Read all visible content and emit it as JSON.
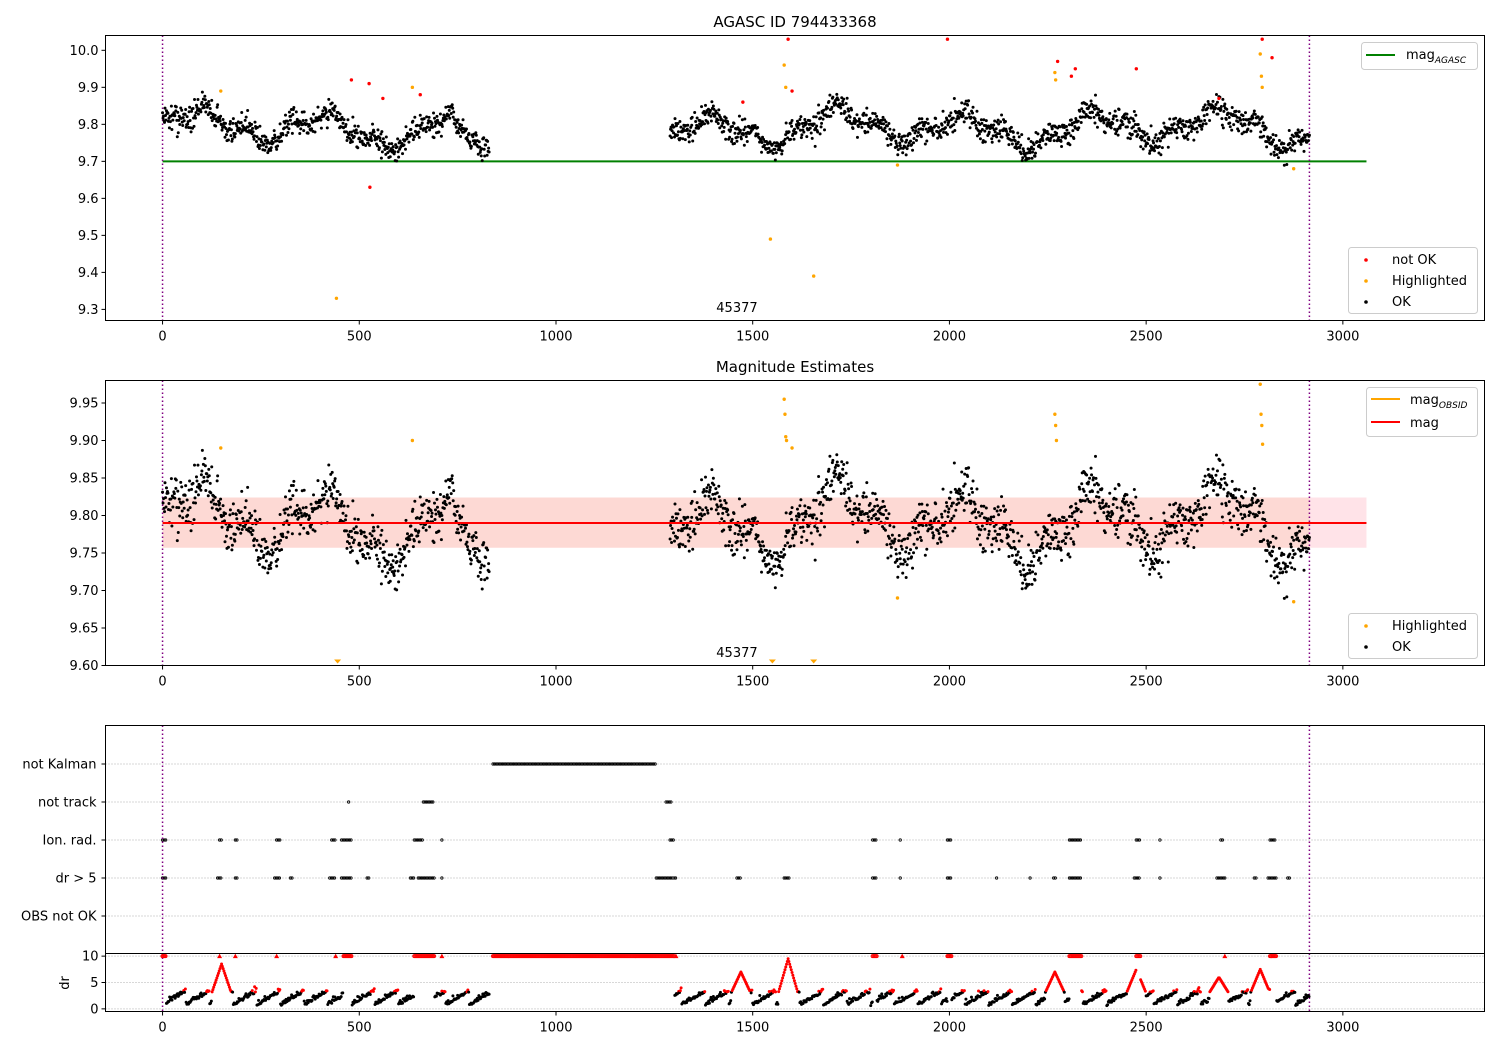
{
  "colors": {
    "ok": "#000000",
    "highlighted": "#ffa500",
    "not_ok": "#ff0000",
    "agasc_line": "#008000",
    "obsid_line": "#ffa500",
    "mag_line": "#ff0000",
    "band_fill": "#fa8072",
    "band_fill_ext": "#ffc0cb",
    "vline": "#800080",
    "grid": "#b0b0b0"
  },
  "chart_data": [
    {
      "type": "scatter",
      "title": "AGASC ID 794433368",
      "xlim": [
        -145,
        3360
      ],
      "ylim": [
        9.27,
        10.04
      ],
      "xticks": [
        0,
        500,
        1000,
        1500,
        2000,
        2500,
        3000
      ],
      "xtick_labels": [
        "0",
        "500",
        "1000",
        "1500",
        "2000",
        "2500",
        "3000"
      ],
      "yticks": [
        9.3,
        9.4,
        9.5,
        9.6,
        9.7,
        9.8,
        9.9,
        10.0
      ],
      "ytick_labels": [
        "9.3",
        "9.4",
        "9.5",
        "9.6",
        "9.7",
        "9.8",
        "9.9",
        "10.0"
      ],
      "obsid_label": "45377",
      "obsid_label_x": 1460,
      "vlines": [
        0,
        2915
      ],
      "hline": {
        "y": 9.7,
        "x": [
          0,
          3060
        ]
      },
      "segments": [
        [
          0,
          830
        ],
        [
          1290,
          2915
        ]
      ],
      "highlighted_points": [
        [
          148,
          9.89
        ],
        [
          442,
          9.33
        ],
        [
          635,
          9.9
        ],
        [
          1545,
          9.49
        ],
        [
          1580,
          9.96
        ],
        [
          1584,
          9.9
        ],
        [
          1655,
          9.39
        ],
        [
          1868,
          9.69
        ],
        [
          2268,
          9.94
        ],
        [
          2270,
          9.92
        ],
        [
          2790,
          9.99
        ],
        [
          2793,
          9.93
        ],
        [
          2795,
          9.9
        ],
        [
          2875,
          9.68
        ]
      ],
      "not_ok_points": [
        [
          480,
          9.92
        ],
        [
          525,
          9.91
        ],
        [
          527,
          9.63
        ],
        [
          560,
          9.87
        ],
        [
          655,
          9.88
        ],
        [
          1475,
          9.86
        ],
        [
          1590,
          10.03
        ],
        [
          1600,
          9.89
        ],
        [
          1995,
          10.03
        ],
        [
          2275,
          9.97
        ],
        [
          2310,
          9.93
        ],
        [
          2320,
          9.95
        ],
        [
          2475,
          9.95
        ],
        [
          2685,
          9.87
        ],
        [
          2795,
          10.03
        ],
        [
          2820,
          9.98
        ]
      ],
      "legend": [
        {
          "key": "agasc",
          "label": "mag",
          "sub": "AGASC"
        },
        {
          "key": "not_ok",
          "label": "not OK"
        },
        {
          "key": "highlighted",
          "label": "Highlighted"
        },
        {
          "key": "ok",
          "label": "OK"
        }
      ]
    },
    {
      "type": "scatter",
      "title": "Magnitude Estimates",
      "xlim": [
        -145,
        3360
      ],
      "ylim": [
        9.6,
        9.98
      ],
      "xticks": [
        0,
        500,
        1000,
        1500,
        2000,
        2500,
        3000
      ],
      "xtick_labels": [
        "0",
        "500",
        "1000",
        "1500",
        "2000",
        "2500",
        "3000"
      ],
      "yticks": [
        9.6,
        9.65,
        9.7,
        9.75,
        9.8,
        9.85,
        9.9,
        9.95
      ],
      "ytick_labels": [
        "9.60",
        "9.65",
        "9.70",
        "9.75",
        "9.80",
        "9.85",
        "9.90",
        "9.95"
      ],
      "obsid_label": "45377",
      "obsid_label_x": 1460,
      "vlines": [
        0,
        2915
      ],
      "mag_line": {
        "y": 9.79,
        "x": [
          0,
          3060
        ]
      },
      "band": {
        "y": [
          9.757,
          9.824
        ],
        "x": [
          0,
          2915
        ],
        "x_ext": [
          2915,
          3060
        ]
      },
      "segments": [
        [
          0,
          830
        ],
        [
          1290,
          2915
        ]
      ],
      "highlighted_points": [
        [
          148,
          9.89
        ],
        [
          635,
          9.9
        ],
        [
          1580,
          9.955
        ],
        [
          1582,
          9.935
        ],
        [
          1584,
          9.905
        ],
        [
          1586,
          9.9
        ],
        [
          1600,
          9.89
        ],
        [
          1868,
          9.69
        ],
        [
          2268,
          9.935
        ],
        [
          2270,
          9.92
        ],
        [
          2272,
          9.9
        ],
        [
          2790,
          9.975
        ],
        [
          2792,
          9.935
        ],
        [
          2794,
          9.92
        ],
        [
          2796,
          9.895
        ],
        [
          2875,
          9.685
        ]
      ],
      "below_markers": [
        445,
        1550,
        1655
      ],
      "legend": [
        {
          "key": "obsid",
          "label": "mag",
          "sub": "OBSID"
        },
        {
          "key": "mag",
          "label": "mag"
        },
        {
          "key": "highlighted",
          "label": "Highlighted"
        },
        {
          "key": "ok",
          "label": "OK"
        }
      ]
    },
    {
      "type": "scatter",
      "xlim": [
        -145,
        3360
      ],
      "category_labels": [
        "not Kalman",
        "not track",
        "Ion. rad.",
        "dr > 5",
        "OBS not OK"
      ],
      "vlines": [
        0,
        2915
      ],
      "flags": {
        "not Kalman": [
          [
            840,
            1255
          ]
        ],
        "not track": [
          [
            473,
            476
          ],
          [
            663,
            690
          ],
          [
            1280,
            1292
          ]
        ],
        "Ion. rad.": [
          [
            0,
            8
          ],
          [
            145,
            150
          ],
          [
            185,
            190
          ],
          [
            290,
            300
          ],
          [
            430,
            440
          ],
          [
            455,
            480
          ],
          [
            640,
            660
          ],
          [
            710,
            712
          ],
          [
            1290,
            1300
          ],
          [
            1805,
            1815
          ],
          [
            1875,
            1878
          ],
          [
            1995,
            2005
          ],
          [
            2305,
            2335
          ],
          [
            2475,
            2485
          ],
          [
            2535,
            2538
          ],
          [
            2690,
            2695
          ],
          [
            2815,
            2830
          ]
        ],
        "dr > 5": [
          [
            0,
            8
          ],
          [
            140,
            150
          ],
          [
            185,
            190
          ],
          [
            285,
            300
          ],
          [
            325,
            330
          ],
          [
            425,
            440
          ],
          [
            455,
            480
          ],
          [
            520,
            525
          ],
          [
            630,
            640
          ],
          [
            650,
            690
          ],
          [
            710,
            712
          ],
          [
            1255,
            1295
          ],
          [
            1300,
            1305
          ],
          [
            1460,
            1470
          ],
          [
            1580,
            1595
          ],
          [
            1805,
            1815
          ],
          [
            1875,
            1878
          ],
          [
            1995,
            2005
          ],
          [
            2120,
            2122
          ],
          [
            2205,
            2208
          ],
          [
            2265,
            2270
          ],
          [
            2305,
            2335
          ],
          [
            2470,
            2485
          ],
          [
            2535,
            2538
          ],
          [
            2680,
            2700
          ],
          [
            2775,
            2780
          ],
          [
            2810,
            2830
          ],
          [
            2860,
            2865
          ]
        ],
        "OBS not OK": []
      }
    },
    {
      "type": "scatter",
      "ylabel": "dr",
      "xlim": [
        -145,
        3360
      ],
      "ylim": [
        -0.5,
        10.5
      ],
      "yticks": [
        0,
        5,
        10
      ],
      "ytick_labels": [
        "0",
        "5",
        "10"
      ],
      "xticks": [
        0,
        500,
        1000,
        1500,
        2000,
        2500,
        3000
      ],
      "xtick_labels": [
        "0",
        "500",
        "1000",
        "1500",
        "2000",
        "2500",
        "3000"
      ],
      "vlines": [
        0,
        2915
      ],
      "clipped_value": 10,
      "clipped_ranges": [
        [
          0,
          8
        ],
        [
          460,
          480
        ],
        [
          640,
          690
        ],
        [
          840,
          1300
        ],
        [
          1805,
          1815
        ],
        [
          1995,
          2005
        ],
        [
          2305,
          2335
        ],
        [
          2475,
          2485
        ],
        [
          2815,
          2830
        ]
      ],
      "triangle_markers": [
        145,
        185,
        290,
        440,
        710,
        1305,
        1880,
        2700
      ],
      "spikes": [
        [
          150,
          8.5
        ],
        [
          1590,
          9.5
        ],
        [
          2268,
          7.0
        ],
        [
          2790,
          7.5
        ],
        [
          1470,
          7.0
        ],
        [
          2475,
          7.5
        ],
        [
          2685,
          6.0
        ]
      ]
    }
  ]
}
